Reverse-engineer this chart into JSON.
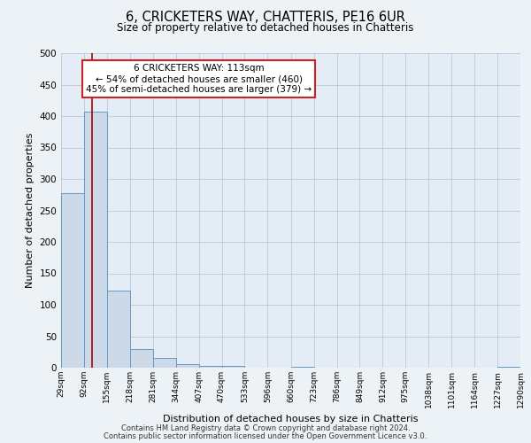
{
  "title": "6, CRICKETERS WAY, CHATTERIS, PE16 6UR",
  "subtitle": "Size of property relative to detached houses in Chatteris",
  "xlabel": "Distribution of detached houses by size in Chatteris",
  "ylabel": "Number of detached properties",
  "bar_color": "#ccd9e8",
  "bar_edge_color": "#6898c0",
  "bg_color": "#e4ecf5",
  "grid_color": "#c0c8d4",
  "fig_bg_color": "#edf2f7",
  "bin_edges": [
    29,
    92,
    155,
    218,
    281,
    344,
    407,
    470,
    533,
    596,
    660,
    723,
    786,
    849,
    912,
    975,
    1038,
    1101,
    1164,
    1227,
    1290
  ],
  "bin_labels": [
    "29sqm",
    "92sqm",
    "155sqm",
    "218sqm",
    "281sqm",
    "344sqm",
    "407sqm",
    "470sqm",
    "533sqm",
    "596sqm",
    "660sqm",
    "723sqm",
    "786sqm",
    "849sqm",
    "912sqm",
    "975sqm",
    "1038sqm",
    "1101sqm",
    "1164sqm",
    "1227sqm",
    "1290sqm"
  ],
  "bar_heights": [
    277,
    407,
    122,
    29,
    15,
    5,
    3,
    3,
    0,
    0,
    2,
    0,
    0,
    0,
    0,
    0,
    0,
    0,
    0,
    2
  ],
  "property_size": 113,
  "red_line_color": "#aa0000",
  "annotation_title": "6 CRICKETERS WAY: 113sqm",
  "annotation_line1": "← 54% of detached houses are smaller (460)",
  "annotation_line2": "45% of semi-detached houses are larger (379) →",
  "annotation_box_facecolor": "#ffffff",
  "annotation_box_edgecolor": "#cc2222",
  "ylim": [
    0,
    500
  ],
  "yticks": [
    0,
    50,
    100,
    150,
    200,
    250,
    300,
    350,
    400,
    450,
    500
  ],
  "footer1": "Contains HM Land Registry data © Crown copyright and database right 2024.",
  "footer2": "Contains public sector information licensed under the Open Government Licence v3.0."
}
